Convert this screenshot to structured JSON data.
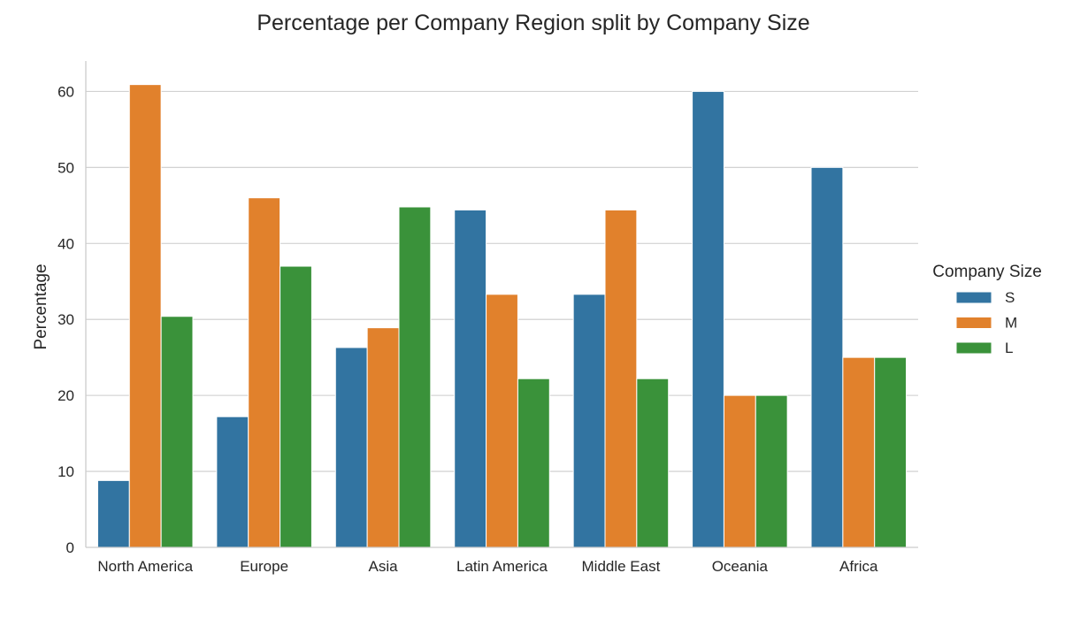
{
  "chart_data": {
    "type": "bar",
    "title": "Percentage per Company Region split by Company Size",
    "xlabel": "",
    "ylabel": "Percentage",
    "categories": [
      "North America",
      "Europe",
      "Asia",
      "Latin America",
      "Middle East",
      "Oceania",
      "Africa"
    ],
    "series": [
      {
        "name": "S",
        "color": "#3274a1",
        "values": [
          8.8,
          17.2,
          26.3,
          44.4,
          33.3,
          60.0,
          50.0
        ]
      },
      {
        "name": "M",
        "color": "#e1812c",
        "values": [
          60.9,
          46.0,
          28.9,
          33.3,
          44.4,
          20.0,
          25.0
        ]
      },
      {
        "name": "L",
        "color": "#3a923a",
        "values": [
          30.4,
          37.0,
          44.8,
          22.2,
          22.2,
          20.0,
          25.0
        ]
      }
    ],
    "ylim": [
      0,
      64
    ],
    "yticks": [
      0,
      10,
      20,
      30,
      40,
      50,
      60
    ],
    "grid": "y",
    "legend": {
      "title": "Company Size",
      "placement": "right"
    }
  }
}
